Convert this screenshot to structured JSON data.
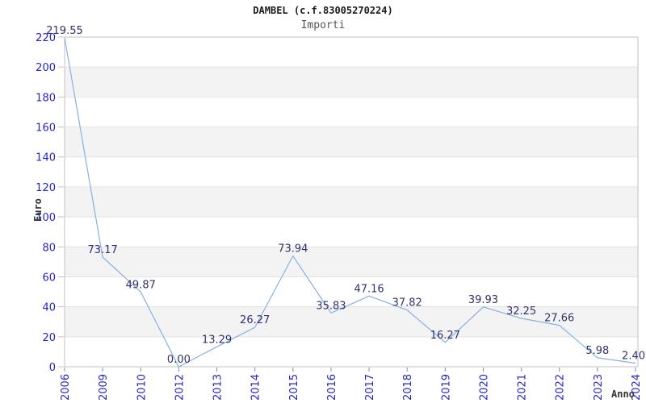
{
  "header": {
    "title": "DAMBEL (c.f.83005270224)",
    "subtitle": "Importi"
  },
  "axes": {
    "ylabel": "Euro",
    "xlabel": "Anno"
  },
  "chart_data": {
    "type": "line",
    "title": "DAMBEL (c.f.83005270224)",
    "subtitle": "Importi",
    "xlabel": "Anno",
    "ylabel": "Euro",
    "categories": [
      "2006",
      "2009",
      "2010",
      "2012",
      "2013",
      "2014",
      "2015",
      "2016",
      "2017",
      "2018",
      "2019",
      "2020",
      "2021",
      "2022",
      "2023",
      "2024"
    ],
    "values": [
      219.55,
      73.17,
      49.87,
      0.0,
      13.29,
      26.27,
      73.94,
      35.83,
      47.16,
      37.82,
      16.27,
      39.93,
      32.25,
      27.66,
      5.98,
      2.4
    ],
    "data_labels": [
      "219.55",
      "73.17",
      "49.87",
      "0.00",
      "13.29",
      "26.27",
      "73.94",
      "35.83",
      "47.16",
      "37.82",
      "16.27",
      "39.93",
      "32.25",
      "27.66",
      "5.98",
      "2.40"
    ],
    "ylim": [
      0,
      220
    ],
    "ytick_step": 20,
    "yticks": [
      0,
      20,
      40,
      60,
      80,
      100,
      120,
      140,
      160,
      180,
      200,
      220
    ],
    "grid": true,
    "legend": "none",
    "band_pattern": "alternating gray bands between gridlines, white at top interval",
    "colors": {
      "line": "#85b2e2",
      "band": "#f3f3f3",
      "grid": "#e3e3e3",
      "border": "#c2c2c2",
      "tick_label": "#2424cd",
      "data_label": "#30306e",
      "x_tick_mark": "#8585cf",
      "y_tick_mark": "#c2c2c2"
    }
  }
}
